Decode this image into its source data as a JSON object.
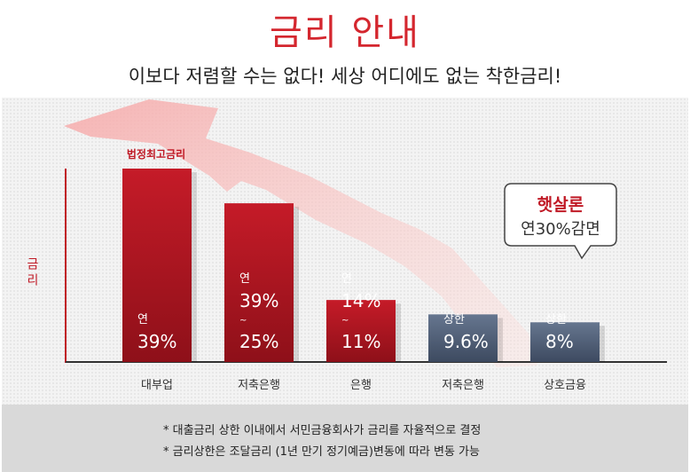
{
  "header": {
    "title": "금리 안내",
    "subtitle": "이보다 저렴할 수는 없다! 세상 어디에도 없는 착한금리!"
  },
  "callout": {
    "line1": "햇살론",
    "line2": "연30%감면"
  },
  "colors": {
    "red": "#c01a26",
    "slate": "#5a6a84",
    "title_red": "#d4262e"
  },
  "chart_data": {
    "type": "bar",
    "ylabel": "금리",
    "categories": [
      "대부업",
      "저축은행",
      "은행",
      "저축은행",
      "상호금융"
    ],
    "values": [
      39,
      32,
      12.5,
      9.6,
      8
    ],
    "bar_labels": [
      [
        "연",
        "39%"
      ],
      [
        "연",
        "39%",
        "~",
        "25%"
      ],
      [
        "연",
        "14%",
        "~",
        "11%"
      ],
      [
        "상한",
        "9.6%"
      ],
      [
        "상한",
        "8%"
      ]
    ],
    "bar_colors": [
      "red",
      "red",
      "red",
      "slate",
      "slate"
    ],
    "annotation": "법정최고금리"
  },
  "footer": {
    "notes": [
      "* 대출금리 상한 이내에서 서민금융회사가 금리를 자율적으로 결정",
      "* 금리상한은 조달금리 (1년 만기 정기예금)변동에 따라 변동 가능"
    ]
  }
}
